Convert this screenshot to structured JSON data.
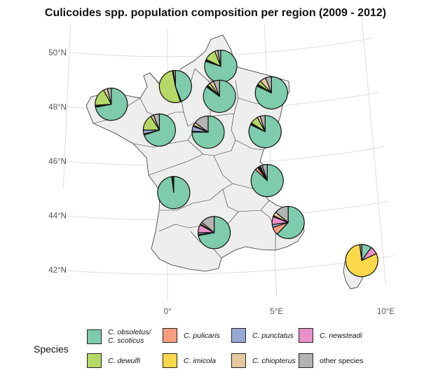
{
  "title": "Culicoides spp. population composition per region (2009 - 2012)",
  "axes": {
    "lat_labels": [
      "50°N",
      "48°N",
      "46°N",
      "44°N",
      "42°N"
    ],
    "lon_labels": [
      "0°",
      "5°E",
      "10°E"
    ]
  },
  "legend": {
    "title": "Species",
    "items": [
      {
        "line1": "C. obsoletus/",
        "line2": "C. scoticus",
        "italic": true,
        "color": "#7ecbad"
      },
      {
        "line1": "C. pulicaris",
        "line2": "",
        "italic": true,
        "color": "#f79f7c"
      },
      {
        "line1": "C. punctatus",
        "line2": "",
        "italic": true,
        "color": "#97a8d2"
      },
      {
        "line1": "C. newsteadi",
        "line2": "",
        "italic": true,
        "color": "#ea90c8"
      },
      {
        "line1": "C. dewulfi",
        "line2": "",
        "italic": true,
        "color": "#b5d866"
      },
      {
        "line1": "C. imicola",
        "line2": "",
        "italic": true,
        "color": "#fcd94a"
      },
      {
        "line1": "C. chiopterus",
        "line2": "",
        "italic": true,
        "color": "#e6c99f"
      },
      {
        "line1": "other species",
        "line2": "",
        "italic": false,
        "color": "#b3b3b3"
      }
    ]
  },
  "chart_data": {
    "type": "pie",
    "map_extent": {
      "lon": [
        -5,
        10
      ],
      "lat": [
        41,
        51
      ]
    },
    "categories": [
      "C. obsoletus/C. scoticus",
      "C. pulicaris",
      "C. punctatus",
      "C. newsteadi",
      "C. dewulfi",
      "C. imicola",
      "C. chiopterus",
      "other species"
    ],
    "colors": [
      "#7ecbad",
      "#f79f7c",
      "#97a8d2",
      "#ea90c8",
      "#b5d866",
      "#fcd94a",
      "#e6c99f",
      "#b3b3b3"
    ],
    "regions": [
      {
        "lon": 2.7,
        "lat": 49.6,
        "values": [
          80,
          1,
          1,
          0,
          12,
          0,
          3,
          3
        ]
      },
      {
        "lon": 0.4,
        "lat": 48.9,
        "values": [
          44,
          1,
          0,
          0,
          52,
          0,
          1,
          2
        ]
      },
      {
        "lon": 2.6,
        "lat": 48.5,
        "values": [
          85,
          1,
          1,
          0,
          3,
          0,
          4,
          6
        ]
      },
      {
        "lon": 5.2,
        "lat": 48.5,
        "values": [
          82,
          1,
          1,
          0,
          4,
          0,
          6,
          6
        ]
      },
      {
        "lon": -2.8,
        "lat": 48.2,
        "values": [
          72,
          1,
          1,
          0,
          18,
          0,
          4,
          4
        ]
      },
      {
        "lon": -0.4,
        "lat": 47.3,
        "values": [
          70,
          1,
          4,
          0,
          16,
          0,
          3,
          6
        ]
      },
      {
        "lon": 2.0,
        "lat": 47.2,
        "values": [
          75,
          1,
          5,
          0,
          1,
          0,
          3,
          15
        ]
      },
      {
        "lon": 4.8,
        "lat": 47.1,
        "values": [
          82,
          1,
          1,
          0,
          8,
          0,
          3,
          5
        ]
      },
      {
        "lon": 0.3,
        "lat": 45.0,
        "values": [
          98,
          0,
          0,
          0,
          1,
          0,
          0,
          1
        ]
      },
      {
        "lon": 4.8,
        "lat": 45.3,
        "values": [
          87,
          3,
          1,
          1,
          1,
          0,
          2,
          5
        ]
      },
      {
        "lon": 2.2,
        "lat": 43.5,
        "values": [
          72,
          1,
          2,
          8,
          1,
          0,
          2,
          14
        ]
      },
      {
        "lon": 5.7,
        "lat": 43.7,
        "values": [
          62,
          8,
          3,
          8,
          1,
          0,
          4,
          14
        ]
      },
      {
        "lon": 9.0,
        "lat": 42.0,
        "values": [
          10,
          0,
          0,
          8,
          0,
          80,
          0,
          2
        ]
      }
    ]
  }
}
